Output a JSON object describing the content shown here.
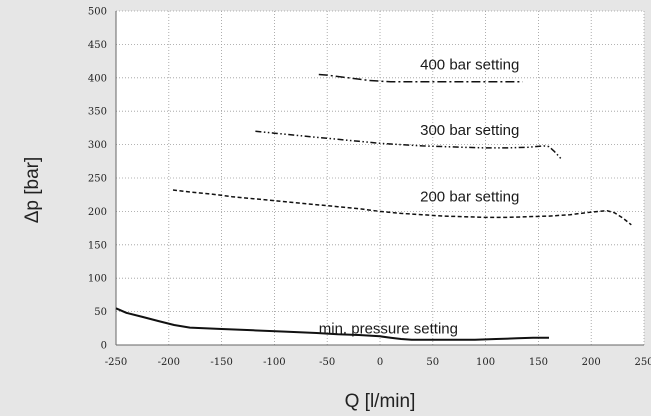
{
  "chart_data": {
    "type": "line",
    "title": "",
    "xlabel": "Q [l/min]",
    "ylabel": "Δp [bar]",
    "xlim": [
      -250,
      250
    ],
    "ylim": [
      0,
      500
    ],
    "xticks": [
      -250,
      -200,
      -150,
      -100,
      -50,
      0,
      50,
      100,
      150,
      200,
      250
    ],
    "yticks": [
      0,
      50,
      100,
      150,
      200,
      250,
      300,
      350,
      400,
      450,
      500
    ],
    "grid": true,
    "colors": {
      "background": "#e6e6e6",
      "plot_area": "#ffffff",
      "line": "#111111",
      "grid": "#9a9a9a"
    },
    "series": [
      {
        "name": "400 bar setting",
        "dash": "dash-dot",
        "x": [
          -58,
          -50,
          -40,
          -30,
          -20,
          -10,
          0,
          10,
          20,
          30,
          50,
          70,
          90,
          110,
          130,
          135
        ],
        "y": [
          405,
          404,
          402,
          400,
          398,
          396,
          395,
          394,
          394,
          394,
          394,
          394,
          394,
          394,
          394,
          394
        ]
      },
      {
        "name": "300 bar setting",
        "dash": "dash-dot-dot",
        "x": [
          -118,
          -100,
          -80,
          -60,
          -40,
          -20,
          0,
          20,
          40,
          60,
          80,
          100,
          120,
          140,
          155,
          160,
          165,
          172
        ],
        "y": [
          320,
          317,
          314,
          311,
          308,
          305,
          302,
          300,
          298,
          297,
          296,
          295,
          295,
          296,
          298,
          297,
          290,
          278
        ]
      },
      {
        "name": "200 bar setting",
        "dash": "dashed",
        "x": [
          -196,
          -180,
          -160,
          -140,
          -120,
          -100,
          -80,
          -60,
          -40,
          -20,
          0,
          20,
          40,
          60,
          80,
          100,
          120,
          140,
          160,
          180,
          200,
          215,
          222,
          230,
          238
        ],
        "y": [
          232,
          229,
          226,
          222,
          219,
          216,
          213,
          210,
          207,
          204,
          200,
          197,
          195,
          193,
          192,
          191,
          191,
          192,
          193,
          195,
          199,
          201,
          198,
          190,
          180
        ]
      },
      {
        "name": "min. pressure setting",
        "dash": "solid",
        "x": [
          -250,
          -240,
          -225,
          -210,
          -195,
          -180,
          -150,
          -120,
          -90,
          -60,
          -40,
          -20,
          0,
          10,
          20,
          30,
          50,
          70,
          90,
          110,
          130,
          145,
          160
        ],
        "y": [
          55,
          48,
          42,
          36,
          30,
          26,
          24,
          22,
          20,
          18,
          16,
          15,
          13,
          11,
          9,
          8,
          8,
          8,
          8,
          9,
          10,
          11,
          11
        ]
      }
    ],
    "annotations": [
      {
        "text": "400 bar setting",
        "series": 0,
        "x": 38,
        "y": 420
      },
      {
        "text": "300 bar setting",
        "series": 1,
        "x": 38,
        "y": 322
      },
      {
        "text": "200 bar setting",
        "series": 2,
        "x": 38,
        "y": 222
      },
      {
        "text": "min. pressure setting",
        "series": 3,
        "x": -58,
        "y": 25
      }
    ]
  }
}
